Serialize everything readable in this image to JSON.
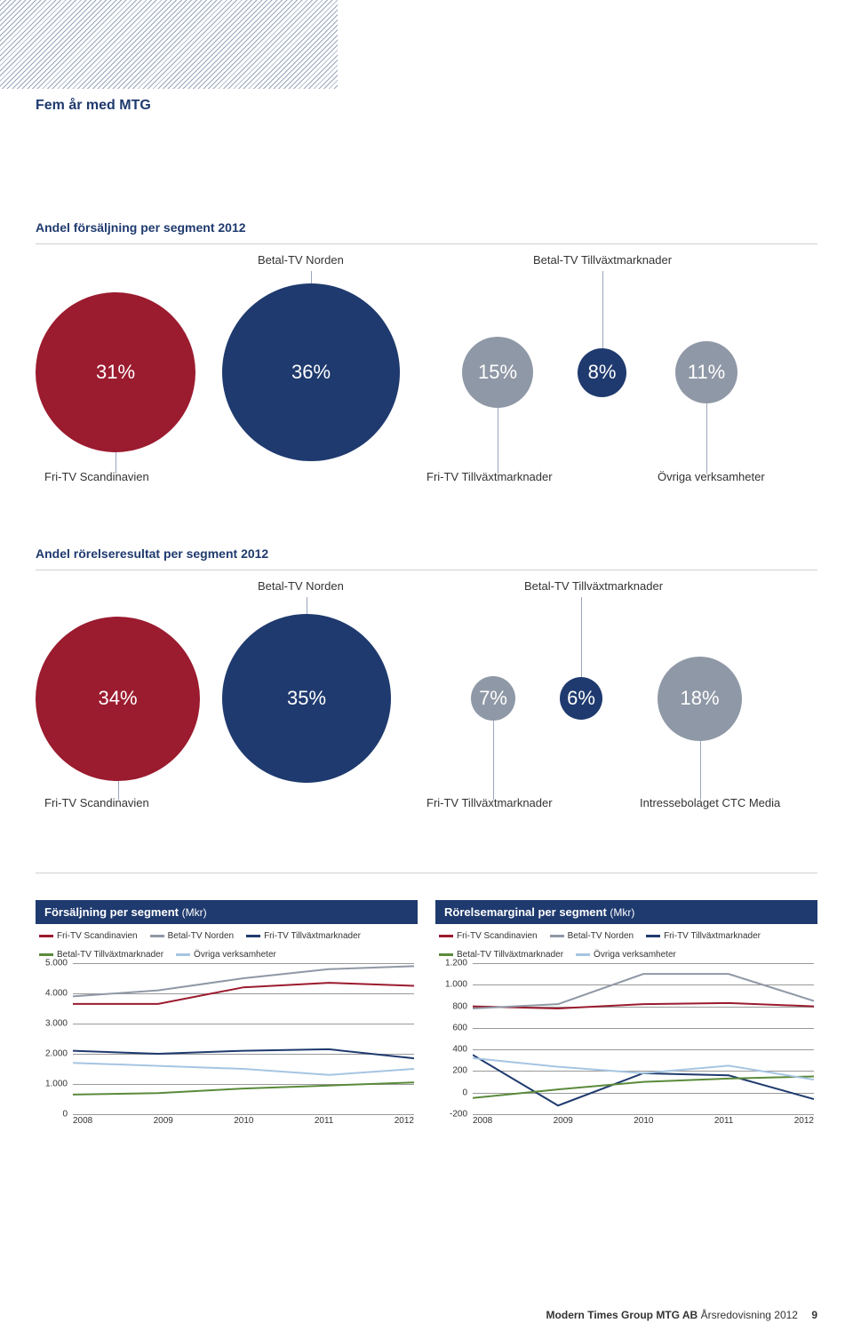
{
  "chapter_title": "Fem år med MTG",
  "bubble_section_1": {
    "title": "Andel försäljning per segment 2012",
    "top_labels": {
      "betal_norden": "Betal-TV Norden",
      "betal_tillvaxt": "Betal-TV Tillväxtmarknader"
    },
    "bottom_labels": {
      "fri_scand": "Fri-TV Scandinavien",
      "fri_tillvaxt": "Fri-TV Tillväxtmarknader",
      "ovriga": "Övriga verksamheter"
    },
    "bubbles": [
      {
        "label": "31%",
        "color": "#9b1b2f",
        "size": 180,
        "x": 0
      },
      {
        "label": "36%",
        "color": "#1f3a6e",
        "size": 200,
        "x": 210
      },
      {
        "label": "15%",
        "color": "#8f98a6",
        "size": 80,
        "x": 480
      },
      {
        "label": "8%",
        "color": "#1f3a6e",
        "size": 55,
        "x": 610
      },
      {
        "label": "11%",
        "color": "#8f98a6",
        "size": 70,
        "x": 720
      }
    ]
  },
  "bubble_section_2": {
    "title": "Andel rörelseresultat per segment 2012",
    "top_labels": {
      "betal_norden": "Betal-TV Norden",
      "betal_tillvaxt": "Betal-TV Tillväxtmarknader"
    },
    "bottom_labels": {
      "fri_scand": "Fri-TV Scandinavien",
      "fri_tillvaxt": "Fri-TV Tillväxtmarknader",
      "intresse": "Intressebolaget CTC Media"
    },
    "bubbles": [
      {
        "label": "34%",
        "color": "#9b1b2f",
        "size": 185,
        "x": 0
      },
      {
        "label": "35%",
        "color": "#1f3a6e",
        "size": 190,
        "x": 210
      },
      {
        "label": "7%",
        "color": "#8f98a6",
        "size": 50,
        "x": 490
      },
      {
        "label": "6%",
        "color": "#1f3a6e",
        "size": 48,
        "x": 590
      },
      {
        "label": "18%",
        "color": "#8f98a6",
        "size": 95,
        "x": 700
      }
    ]
  },
  "line_chart_left": {
    "title": "Försäljning per segment",
    "unit": "(Mkr)",
    "legend": [
      {
        "name": "Fri-TV Scandinavien",
        "color": "#9b1b2f"
      },
      {
        "name": "Betal-TV Norden",
        "color": "#8f98a6"
      },
      {
        "name": "Fri-TV Tillväxtmarknader",
        "color": "#1f3a6e"
      },
      {
        "name": "Betal-TV Tillväxtmarknader",
        "color": "#5a8a3a"
      },
      {
        "name": "Övriga verksamheter",
        "color": "#a6c5e2"
      }
    ],
    "y_ticks": [
      "5.000",
      "4.000",
      "3.000",
      "2.000",
      "1.000",
      "0"
    ],
    "ylim": [
      0,
      5000
    ],
    "x_ticks": [
      "2008",
      "2009",
      "2010",
      "2011",
      "2012"
    ],
    "series": [
      {
        "color": "#9b1b2f",
        "width": 2,
        "values": [
          3650,
          3650,
          4200,
          4350,
          4250
        ]
      },
      {
        "color": "#8f98a6",
        "width": 2,
        "values": [
          3900,
          4100,
          4500,
          4800,
          4900
        ]
      },
      {
        "color": "#1f3a6e",
        "width": 2,
        "values": [
          2100,
          2000,
          2100,
          2150,
          1850
        ]
      },
      {
        "color": "#5a8a3a",
        "width": 2,
        "values": [
          650,
          700,
          850,
          950,
          1050
        ]
      },
      {
        "color": "#a6c5e2",
        "width": 2,
        "values": [
          1700,
          1600,
          1500,
          1300,
          1500
        ]
      }
    ]
  },
  "line_chart_right": {
    "title": "Rörelsemarginal per segment",
    "unit": "(Mkr)",
    "legend": [
      {
        "name": "Fri-TV Scandinavien",
        "color": "#9b1b2f"
      },
      {
        "name": "Betal-TV Norden",
        "color": "#8f98a6"
      },
      {
        "name": "Fri-TV Tillväxtmarknader",
        "color": "#1f3a6e"
      },
      {
        "name": "Betal-TV Tillväxtmarknader",
        "color": "#5a8a3a"
      },
      {
        "name": "Övriga verksamheter",
        "color": "#a6c5e2"
      }
    ],
    "y_ticks": [
      "1.200",
      "1.000",
      "800",
      "600",
      "400",
      "200",
      "0",
      "-200"
    ],
    "ylim": [
      -200,
      1200
    ],
    "x_ticks": [
      "2008",
      "2009",
      "2010",
      "2011",
      "2012"
    ],
    "series": [
      {
        "color": "#9b1b2f",
        "width": 2,
        "values": [
          800,
          780,
          820,
          830,
          800
        ]
      },
      {
        "color": "#8f98a6",
        "width": 2,
        "values": [
          780,
          820,
          1100,
          1100,
          850
        ]
      },
      {
        "color": "#1f3a6e",
        "width": 2,
        "values": [
          350,
          -120,
          180,
          160,
          -60
        ]
      },
      {
        "color": "#5a8a3a",
        "width": 2,
        "values": [
          -50,
          30,
          100,
          130,
          150
        ]
      },
      {
        "color": "#a6c5e2",
        "width": 2,
        "values": [
          320,
          240,
          180,
          250,
          120
        ]
      }
    ]
  },
  "footer": {
    "company": "Modern Times Group MTG AB",
    "doc": "Årsredovisning 2012",
    "page": "9"
  }
}
